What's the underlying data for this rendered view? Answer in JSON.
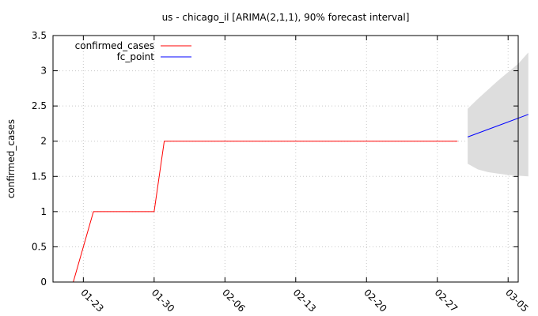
{
  "chart_data": {
    "type": "line",
    "title": "us - chicago_il [ARIMA(2,1,1), 90% forecast interval]",
    "ylabel": "confirmed_cases",
    "xlabel": "",
    "ylim": [
      0,
      3.5
    ],
    "yticks": [
      0,
      0.5,
      1,
      1.5,
      2,
      2.5,
      3,
      3.5
    ],
    "ytick_labels": [
      "0",
      "0.5",
      "1",
      "1.5",
      "2",
      "2.5",
      "3",
      "3.5"
    ],
    "xlim": [
      "2020-01-20",
      "2020-03-06"
    ],
    "xticks": [
      "2020-01-23",
      "2020-01-30",
      "2020-02-06",
      "2020-02-13",
      "2020-02-20",
      "2020-02-27",
      "2020-03-05"
    ],
    "xtick_labels": [
      "01-23",
      "01-30",
      "02-06",
      "02-13",
      "02-20",
      "02-27",
      "03-05"
    ],
    "grid": true,
    "legend_position": "top-left",
    "series": [
      {
        "name": "confirmed_cases",
        "color": "#ff0000",
        "step": true,
        "points": [
          [
            "2020-01-22",
            0
          ],
          [
            "2020-01-24",
            1
          ],
          [
            "2020-01-30",
            1
          ],
          [
            "2020-01-31",
            2
          ],
          [
            "2020-02-29",
            2
          ]
        ]
      },
      {
        "name": "fc_point",
        "color": "#0000ff",
        "points": [
          [
            "2020-03-01",
            2.06
          ],
          [
            "2020-03-07",
            2.38
          ]
        ]
      }
    ],
    "interval": {
      "color": "#dddddd",
      "points": [
        [
          "2020-03-01",
          1.68,
          2.46
        ],
        [
          "2020-03-02",
          1.6,
          2.6
        ],
        [
          "2020-03-03",
          1.56,
          2.73
        ],
        [
          "2020-03-04",
          1.54,
          2.86
        ],
        [
          "2020-03-05",
          1.52,
          2.98
        ],
        [
          "2020-03-06",
          1.51,
          3.1
        ],
        [
          "2020-03-07",
          1.5,
          3.26
        ]
      ]
    }
  }
}
